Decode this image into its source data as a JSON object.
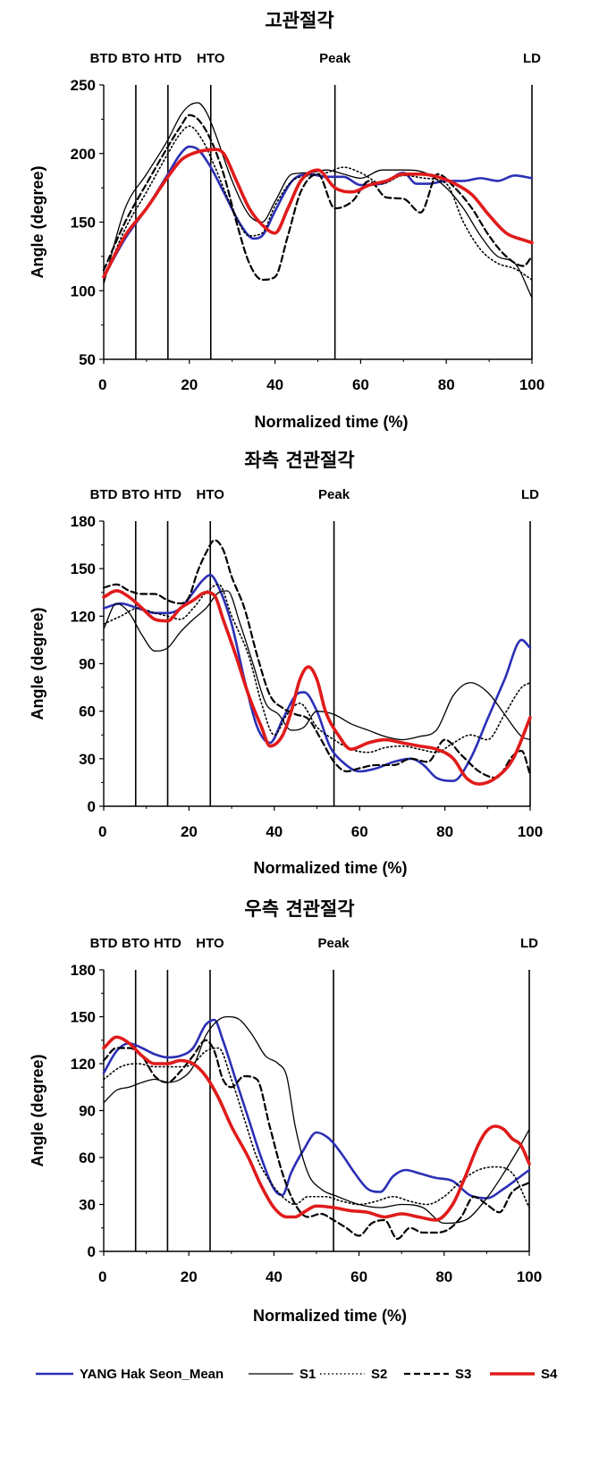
{
  "chart_data": [
    {
      "type": "line",
      "title": "고관절각",
      "xlabel": "Normalized time (%)",
      "ylabel": "Angle (degree)",
      "xlim": [
        0,
        100
      ],
      "ylim": [
        50,
        250
      ],
      "xticks": [
        "0",
        "20",
        "40",
        "60",
        "80",
        "100"
      ],
      "yticks": [
        "50",
        "100",
        "150",
        "200",
        "250"
      ],
      "events": [
        {
          "label": "BTD",
          "x": 0
        },
        {
          "label": "BTO",
          "x": 7.5
        },
        {
          "label": "HTD",
          "x": 15
        },
        {
          "label": "HTO",
          "x": 25
        },
        {
          "label": "Peak",
          "x": 54
        },
        {
          "label": "LD",
          "x": 100
        }
      ],
      "series": [
        {
          "name": "YANG Hak Seon_Mean",
          "x": [
            0,
            5,
            10,
            15,
            18,
            20,
            22,
            25,
            28,
            32,
            35,
            37,
            40,
            44,
            48,
            52,
            56,
            60,
            65,
            70,
            73,
            76,
            80,
            84,
            88,
            92,
            96,
            100
          ],
          "y": [
            110,
            138,
            160,
            185,
            200,
            205,
            203,
            190,
            172,
            148,
            138,
            140,
            158,
            180,
            185,
            183,
            183,
            177,
            178,
            186,
            178,
            178,
            180,
            180,
            182,
            180,
            184,
            182
          ]
        },
        {
          "name": "S1",
          "x": [
            0,
            5,
            10,
            15,
            18,
            20,
            22,
            24,
            26,
            30,
            34,
            37,
            40,
            44,
            48,
            52,
            56,
            60,
            65,
            70,
            75,
            80,
            84,
            88,
            92,
            96,
            100
          ],
          "y": [
            105,
            160,
            185,
            210,
            228,
            235,
            237,
            230,
            215,
            180,
            155,
            150,
            165,
            185,
            186,
            188,
            185,
            182,
            188,
            188,
            186,
            175,
            160,
            140,
            125,
            120,
            95
          ]
        },
        {
          "name": "S2",
          "x": [
            0,
            5,
            10,
            15,
            18,
            20,
            23,
            26,
            30,
            34,
            37,
            40,
            44,
            48,
            52,
            56,
            60,
            65,
            70,
            75,
            80,
            84,
            88,
            92,
            96,
            100
          ],
          "y": [
            108,
            145,
            172,
            200,
            215,
            220,
            210,
            190,
            160,
            140,
            142,
            162,
            180,
            184,
            186,
            190,
            186,
            178,
            184,
            182,
            178,
            150,
            130,
            120,
            116,
            108
          ]
        },
        {
          "name": "S3",
          "x": [
            0,
            5,
            10,
            15,
            18,
            20,
            22,
            25,
            28,
            31,
            34,
            37,
            40,
            43,
            46,
            50,
            54,
            58,
            62,
            66,
            70,
            74,
            78,
            82,
            86,
            90,
            94,
            98,
            100
          ],
          "y": [
            115,
            150,
            178,
            205,
            220,
            228,
            225,
            210,
            185,
            150,
            120,
            108,
            110,
            140,
            172,
            185,
            160,
            165,
            180,
            168,
            167,
            157,
            185,
            175,
            160,
            140,
            125,
            118,
            125
          ]
        },
        {
          "name": "S4",
          "x": [
            0,
            5,
            10,
            15,
            18,
            20,
            23,
            26,
            28,
            31,
            34,
            37,
            40,
            43,
            46,
            50,
            54,
            58,
            62,
            66,
            70,
            74,
            78,
            82,
            86,
            90,
            94,
            98,
            100
          ],
          "y": [
            110,
            140,
            160,
            183,
            195,
            199,
            202,
            203,
            200,
            180,
            160,
            148,
            142,
            160,
            180,
            188,
            175,
            172,
            177,
            180,
            185,
            185,
            183,
            178,
            170,
            155,
            142,
            137,
            135
          ]
        }
      ]
    },
    {
      "type": "line",
      "title": "좌측 견관절각",
      "xlabel": "Normalized time (%)",
      "ylabel": "Angle (degree)",
      "xlim": [
        0,
        100
      ],
      "ylim": [
        0,
        180
      ],
      "xticks": [
        "0",
        "20",
        "40",
        "60",
        "80",
        "100"
      ],
      "yticks": [
        "0",
        "30",
        "60",
        "90",
        "120",
        "150",
        "180"
      ],
      "events": [
        {
          "label": "BTD",
          "x": 0
        },
        {
          "label": "BTO",
          "x": 7.5
        },
        {
          "label": "HTD",
          "x": 15
        },
        {
          "label": "HTO",
          "x": 25
        },
        {
          "label": "Peak",
          "x": 54
        },
        {
          "label": "LD",
          "x": 100
        }
      ],
      "series": [
        {
          "name": "YANG Hak Seon_Mean",
          "x": [
            0,
            4,
            8,
            12,
            15,
            18,
            21,
            23,
            25,
            27,
            30,
            33,
            36,
            39,
            42,
            45,
            47,
            50,
            53,
            56,
            60,
            64,
            68,
            72,
            75,
            78,
            82,
            86,
            90,
            94,
            98,
            100
          ],
          "y": [
            125,
            128,
            125,
            122,
            122,
            125,
            135,
            142,
            146,
            138,
            115,
            80,
            50,
            40,
            55,
            70,
            72,
            60,
            38,
            28,
            22,
            24,
            28,
            30,
            26,
            18,
            16,
            30,
            55,
            80,
            105,
            100
          ]
        },
        {
          "name": "S1",
          "x": [
            0,
            3,
            6,
            9,
            12,
            15,
            18,
            21,
            24,
            27,
            29,
            32,
            35,
            38,
            41,
            44,
            47,
            50,
            54,
            58,
            62,
            66,
            70,
            74,
            78,
            82,
            86,
            90,
            94,
            98,
            100
          ],
          "y": [
            112,
            128,
            122,
            108,
            98,
            100,
            110,
            118,
            125,
            135,
            136,
            115,
            90,
            65,
            58,
            48,
            50,
            60,
            58,
            52,
            48,
            44,
            42,
            44,
            48,
            70,
            78,
            72,
            58,
            44,
            42
          ]
        },
        {
          "name": "S2",
          "x": [
            0,
            4,
            8,
            12,
            15,
            18,
            21,
            24,
            27,
            30,
            34,
            37,
            40,
            43,
            46,
            50,
            54,
            58,
            62,
            66,
            70,
            74,
            78,
            82,
            86,
            90,
            94,
            98,
            100
          ],
          "y": [
            115,
            120,
            125,
            122,
            120,
            118,
            125,
            135,
            140,
            120,
            95,
            65,
            45,
            58,
            65,
            50,
            42,
            36,
            34,
            37,
            38,
            36,
            34,
            40,
            45,
            42,
            58,
            75,
            78
          ]
        },
        {
          "name": "S3",
          "x": [
            0,
            3,
            6,
            9,
            12,
            15,
            18,
            20,
            22,
            24,
            26,
            28,
            30,
            33,
            36,
            39,
            42,
            45,
            48,
            51,
            54,
            57,
            60,
            64,
            68,
            72,
            76,
            80,
            84,
            88,
            92,
            96,
            98,
            100
          ],
          "y": [
            138,
            140,
            136,
            134,
            134,
            130,
            128,
            132,
            148,
            160,
            168,
            162,
            145,
            125,
            95,
            70,
            62,
            58,
            55,
            42,
            28,
            22,
            24,
            26,
            26,
            30,
            28,
            42,
            32,
            22,
            18,
            32,
            35,
            20
          ]
        },
        {
          "name": "S4",
          "x": [
            0,
            3,
            6,
            9,
            12,
            15,
            18,
            21,
            24,
            26,
            28,
            31,
            34,
            37,
            39,
            42,
            44,
            46,
            48,
            50,
            52,
            55,
            58,
            62,
            66,
            70,
            74,
            78,
            82,
            85,
            88,
            92,
            96,
            100
          ],
          "y": [
            132,
            136,
            132,
            125,
            118,
            117,
            125,
            130,
            135,
            133,
            118,
            95,
            70,
            50,
            38,
            45,
            60,
            80,
            88,
            80,
            60,
            45,
            36,
            40,
            42,
            40,
            38,
            36,
            30,
            18,
            14,
            18,
            30,
            56
          ]
        }
      ]
    },
    {
      "type": "line",
      "title": "우측 견관절각",
      "xlabel": "Normalized time (%)",
      "ylabel": "Angle (degree)",
      "xlim": [
        0,
        100
      ],
      "ylim": [
        0,
        180
      ],
      "xticks": [
        "0",
        "20",
        "40",
        "60",
        "80",
        "100"
      ],
      "yticks": [
        "0",
        "30",
        "60",
        "90",
        "120",
        "150",
        "180"
      ],
      "events": [
        {
          "label": "BTD",
          "x": 0
        },
        {
          "label": "BTO",
          "x": 7.5
        },
        {
          "label": "HTD",
          "x": 15
        },
        {
          "label": "HTO",
          "x": 25
        },
        {
          "label": "Peak",
          "x": 54
        },
        {
          "label": "LD",
          "x": 100
        }
      ],
      "series": [
        {
          "name": "YANG Hak Seon_Mean",
          "x": [
            0,
            3,
            6,
            9,
            12,
            15,
            18,
            21,
            24,
            26,
            28,
            31,
            34,
            37,
            40,
            42,
            44,
            47,
            50,
            53,
            56,
            59,
            62,
            65,
            68,
            71,
            74,
            78,
            82,
            86,
            90,
            94,
            98,
            100
          ],
          "y": [
            114,
            128,
            133,
            130,
            126,
            124,
            125,
            130,
            145,
            148,
            135,
            110,
            85,
            60,
            40,
            36,
            50,
            65,
            76,
            72,
            62,
            50,
            40,
            38,
            48,
            52,
            50,
            47,
            45,
            36,
            34,
            40,
            48,
            52
          ]
        },
        {
          "name": "S1",
          "x": [
            0,
            3,
            6,
            9,
            12,
            15,
            18,
            21,
            24,
            27,
            29,
            32,
            35,
            38,
            41,
            43,
            45,
            48,
            51,
            55,
            60,
            65,
            70,
            75,
            80,
            85,
            90,
            94,
            98,
            100
          ],
          "y": [
            95,
            103,
            105,
            108,
            110,
            108,
            110,
            118,
            138,
            148,
            150,
            148,
            138,
            125,
            120,
            112,
            80,
            50,
            40,
            35,
            30,
            28,
            30,
            28,
            18,
            20,
            34,
            50,
            68,
            78
          ]
        },
        {
          "name": "S2",
          "x": [
            0,
            4,
            8,
            12,
            15,
            18,
            21,
            24,
            27,
            30,
            33,
            36,
            39,
            42,
            45,
            48,
            52,
            56,
            60,
            64,
            68,
            72,
            76,
            80,
            84,
            88,
            92,
            96,
            100
          ],
          "y": [
            110,
            118,
            120,
            118,
            118,
            118,
            120,
            128,
            130,
            110,
            85,
            60,
            45,
            35,
            30,
            35,
            35,
            32,
            30,
            32,
            35,
            32,
            30,
            35,
            45,
            52,
            54,
            50,
            28
          ]
        },
        {
          "name": "S3",
          "x": [
            0,
            3,
            6,
            9,
            12,
            15,
            18,
            21,
            24,
            26,
            28,
            30,
            33,
            36,
            39,
            42,
            45,
            48,
            51,
            54,
            57,
            60,
            63,
            66,
            69,
            72,
            75,
            78,
            81,
            84,
            87,
            90,
            93,
            96,
            100
          ],
          "y": [
            122,
            130,
            130,
            125,
            112,
            108,
            115,
            125,
            135,
            128,
            110,
            105,
            112,
            110,
            80,
            50,
            30,
            22,
            24,
            20,
            15,
            10,
            18,
            20,
            8,
            15,
            12,
            12,
            14,
            22,
            35,
            30,
            25,
            38,
            44
          ]
        },
        {
          "name": "S4",
          "x": [
            0,
            3,
            6,
            9,
            12,
            15,
            18,
            21,
            24,
            27,
            30,
            34,
            37,
            40,
            43,
            45,
            47,
            50,
            54,
            58,
            62,
            66,
            70,
            74,
            78,
            82,
            85,
            88,
            90,
            92,
            94,
            96,
            98,
            100
          ],
          "y": [
            130,
            137,
            133,
            125,
            120,
            120,
            122,
            120,
            112,
            98,
            80,
            60,
            42,
            28,
            22,
            22,
            25,
            29,
            28,
            26,
            25,
            22,
            24,
            22,
            20,
            30,
            48,
            68,
            77,
            80,
            78,
            72,
            68,
            56
          ]
        }
      ]
    }
  ],
  "legend": {
    "placement": "bottom",
    "entries": [
      {
        "name": "YANG Hak Seon_Mean",
        "color": "#2b2fb5",
        "style": "solid"
      },
      {
        "name": "S1",
        "color": "#000000",
        "style": "thin"
      },
      {
        "name": "S2",
        "color": "#000000",
        "style": "dotted"
      },
      {
        "name": "S3",
        "color": "#000000",
        "style": "dashed"
      },
      {
        "name": "S4",
        "color": "#e01b1b",
        "style": "thick"
      }
    ]
  }
}
